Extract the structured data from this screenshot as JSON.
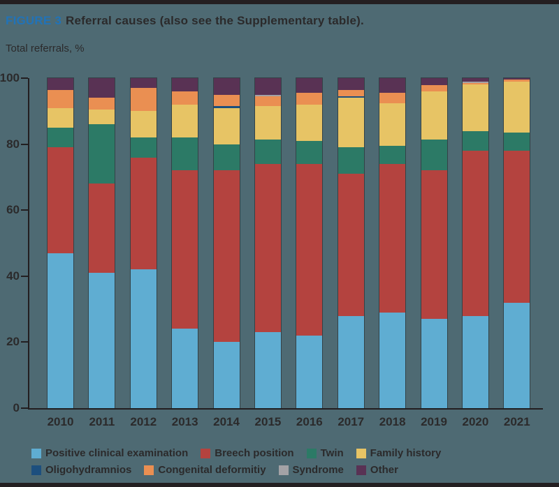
{
  "header": {
    "figure_label": "FIGURE 3",
    "title": "Referral causes (also see the Supplementary table)."
  },
  "chart": {
    "y_axis_label": "Total referrals, %"
  },
  "colors": {
    "background": "#4e6a73",
    "edge_bar": "#241f21",
    "axis": "#221e20",
    "text": "#2b2a2b",
    "figure_label_blue": "#2173b8"
  },
  "chart_data": {
    "type": "bar",
    "stacked": true,
    "title": "Referral causes",
    "ylabel": "Total referrals, %",
    "xlabel": "",
    "ylim": [
      0,
      100
    ],
    "y_ticks": [
      0,
      20,
      40,
      60,
      80,
      100
    ],
    "grid": false,
    "legend_position": "bottom",
    "categories": [
      "2010",
      "2011",
      "2012",
      "2013",
      "2014",
      "2015",
      "2016",
      "2017",
      "2018",
      "2019",
      "2020",
      "2021"
    ],
    "series": [
      {
        "name": "Positive clinical examination",
        "color": "#5fadd2",
        "values": [
          47,
          41,
          42,
          24,
          20,
          23,
          22,
          28,
          29,
          27,
          28,
          32
        ]
      },
      {
        "name": "Breech position",
        "color": "#b4433f",
        "values": [
          32,
          27,
          34,
          48,
          52,
          51,
          52,
          43,
          45,
          45,
          50,
          46
        ]
      },
      {
        "name": "Twin",
        "color": "#2c7a66",
        "values": [
          6,
          18,
          6,
          10,
          8,
          7.5,
          7,
          8,
          5.5,
          9.5,
          6,
          5.5
        ]
      },
      {
        "name": "Family history",
        "color": "#e7c465",
        "values": [
          6,
          4.5,
          8,
          10,
          11,
          10,
          11,
          15,
          13,
          14.5,
          14,
          15.5
        ]
      },
      {
        "name": "Oligohydramnios",
        "color": "#1d4f7e",
        "values": [
          0,
          0,
          0,
          0,
          0.5,
          0,
          0,
          0.5,
          0,
          0,
          0,
          0
        ]
      },
      {
        "name": "Congenital deformitiy",
        "color": "#ea8f52",
        "values": [
          5.5,
          3.5,
          7,
          4,
          3.5,
          3,
          3.5,
          2,
          3,
          2,
          0.5,
          0.5
        ]
      },
      {
        "name": "Syndrome",
        "color": "#a3a2a6",
        "values": [
          0,
          0,
          0,
          0,
          0,
          0.5,
          0,
          0,
          0,
          0,
          0.5,
          0
        ]
      },
      {
        "name": "Other",
        "color": "#593254",
        "values": [
          3.5,
          6,
          3,
          4,
          5,
          5,
          4.5,
          3.5,
          4.5,
          2,
          1,
          0.5
        ]
      }
    ],
    "legend_rows": [
      [
        "Positive clinical examination",
        "Breech position",
        "Twin",
        "Family history"
      ],
      [
        "Oligohydramnios",
        "Congenital deformitiy",
        "Syndrome",
        "Other"
      ]
    ]
  }
}
